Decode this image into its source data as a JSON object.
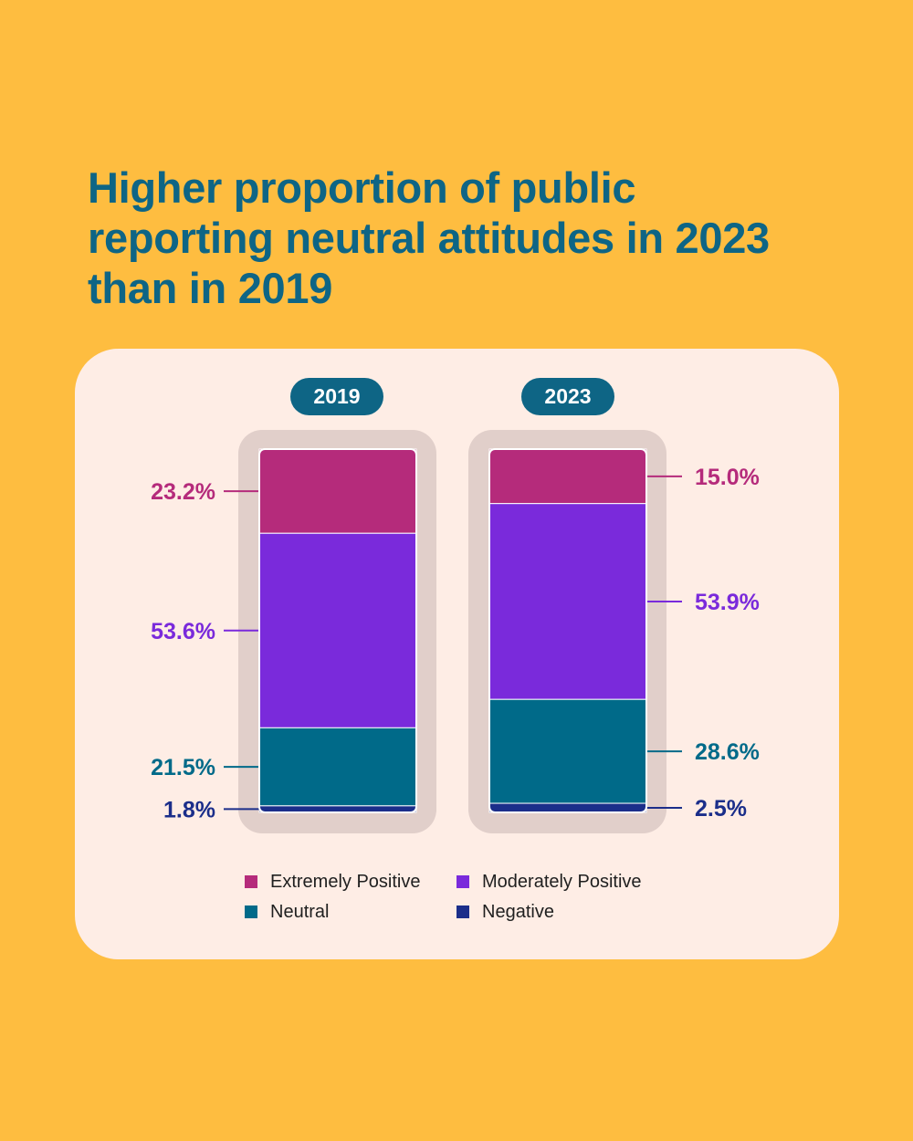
{
  "title": "Higher proportion of public reporting neutral attitudes in 2023 than in 2019",
  "colors": {
    "background": "#FEBD40",
    "card": "#FEEDE5",
    "title": "#0E6585",
    "bar_frame": "#E1CFCA",
    "year_pill": "#0E6585"
  },
  "legend": [
    {
      "label": "Extremely Positive",
      "color": "#B52B7B"
    },
    {
      "label": "Moderately Positive",
      "color": "#7A2ADB"
    },
    {
      "label": "Neutral",
      "color": "#006A89"
    },
    {
      "label": "Negative",
      "color": "#1B2E8A"
    }
  ],
  "chart_data": {
    "type": "bar",
    "stacked": true,
    "categories": [
      "2019",
      "2023"
    ],
    "series": [
      {
        "name": "Extremely Positive",
        "values": [
          23.2,
          15.0
        ],
        "labels": [
          "23.2%",
          "15.0%"
        ],
        "color": "#B52B7B"
      },
      {
        "name": "Moderately Positive",
        "values": [
          53.6,
          53.9
        ],
        "labels": [
          "53.6%",
          "53.9%"
        ],
        "color": "#7A2ADB"
      },
      {
        "name": "Neutral",
        "values": [
          21.5,
          28.6
        ],
        "labels": [
          "21.5%",
          "28.6%"
        ],
        "color": "#006A89"
      },
      {
        "name": "Negative",
        "values": [
          1.8,
          2.5
        ],
        "labels": [
          "1.8%",
          "2.5%"
        ],
        "color": "#1B2E8A"
      }
    ],
    "label_colors": [
      "#B52B7B",
      "#7A2ADB",
      "#006A89",
      "#1B2E8A"
    ],
    "value_label_placement": [
      "left",
      "right"
    ],
    "unit": "%",
    "legend_placement": "bottom"
  }
}
